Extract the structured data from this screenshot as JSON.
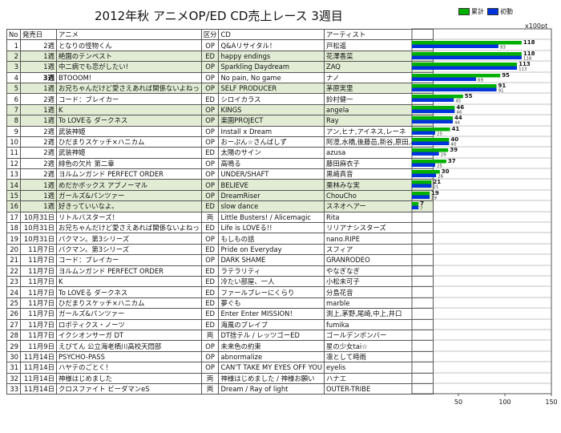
{
  "title": "2012年秋 アニメOP/ED CD売上レース 3週目",
  "legend": {
    "total_label": "累計",
    "week_label": "初動",
    "total_color": "#00b000",
    "week_color": "#0033dd"
  },
  "unit": "x100pt",
  "headers": [
    "No",
    "発売日",
    "アニメ",
    "区分",
    "CD",
    "アーティスト"
  ],
  "rows": [
    {
      "no": "1",
      "date": "2週",
      "anime": "となりの怪物くん",
      "type": "OP",
      "cd": "Q&Aリサイタル！",
      "artist": "戸松遥",
      "hl": false
    },
    {
      "no": "2",
      "date": "1週",
      "anime": "絶園のテンペスト",
      "type": "ED",
      "cd": "happy endings",
      "artist": "花澤香菜",
      "hl": true
    },
    {
      "no": "3",
      "date": "1週",
      "anime": "中二病でも恋がしたい!",
      "type": "OP",
      "cd": "Sparkling Daydream",
      "artist": "ZAQ",
      "hl": true
    },
    {
      "no": "4",
      "date": "3週",
      "anime": "BTOOOM!",
      "type": "OP",
      "cd": "No pain, No game",
      "artist": "ナノ",
      "hl": false
    },
    {
      "no": "5",
      "date": "1週",
      "anime": "お兄ちゃんだけど愛さえあれば関係ないよねっ",
      "type": "OP",
      "cd": "SELF PRODUCER",
      "artist": "茅原実里",
      "hl": true
    },
    {
      "no": "6",
      "date": "2週",
      "anime": "コード：ブレイカー",
      "type": "ED",
      "cd": "シロイカラス",
      "artist": "鈴村健一",
      "hl": false
    },
    {
      "no": "7",
      "date": "1週",
      "anime": "K",
      "type": "OP",
      "cd": "KINGS",
      "artist": "angela",
      "hl": true
    },
    {
      "no": "8",
      "date": "1週",
      "anime": "To LOVEる ダークネス",
      "type": "OP",
      "cd": "楽園PROJECT",
      "artist": "Ray",
      "hl": true
    },
    {
      "no": "9",
      "date": "2週",
      "anime": "武装神姫",
      "type": "OP",
      "cd": "Install x Dream",
      "artist": "アン,ヒナ,アイネス,レーネ",
      "hl": false
    },
    {
      "no": "10",
      "date": "2週",
      "anime": "ひだまりスケッチ×ハニカム",
      "type": "OP",
      "cd": "おーぷん☆さんばしず",
      "artist": "阿澄,水橋,後藤邑,新谷,原田,小見川",
      "hl": false
    },
    {
      "no": "11",
      "date": "2週",
      "anime": "武装神姫",
      "type": "ED",
      "cd": "太陽のサイン",
      "artist": "azusa",
      "hl": false
    },
    {
      "no": "12",
      "date": "2週",
      "anime": "緋色の欠片 第二章",
      "type": "OP",
      "cd": "高鳴る",
      "artist": "藤田麻衣子",
      "hl": false
    },
    {
      "no": "13",
      "date": "2週",
      "anime": "ヨルムンガンド PERFECT ORDER",
      "type": "OP",
      "cd": "UNDER/SHAFT",
      "artist": "黒崎真音",
      "hl": false
    },
    {
      "no": "14",
      "date": "1週",
      "anime": "めだかボックス アブノーマル",
      "type": "OP",
      "cd": "BELIEVE",
      "artist": "栗林みな実",
      "hl": true
    },
    {
      "no": "15",
      "date": "1週",
      "anime": "ガールズ&パンツァー",
      "type": "OP",
      "cd": "DreamRiser",
      "artist": "ChouCho",
      "hl": true
    },
    {
      "no": "16",
      "date": "1週",
      "anime": "好きっていいなよ。",
      "type": "ED",
      "cd": "slow dance",
      "artist": "スネオヘアー",
      "hl": true
    },
    {
      "no": "17",
      "date": "10月31日",
      "anime": "リトルバスターズ！",
      "type": "両",
      "cd": "Little Busters! / Alicemagic",
      "artist": "Rita",
      "hl": false
    },
    {
      "no": "18",
      "date": "10月31日",
      "anime": "お兄ちゃんだけど愛さえあれば関係ないよねっ",
      "type": "ED",
      "cd": "Life is LOVEる!!",
      "artist": "リリアナシスターズ",
      "hl": false
    },
    {
      "no": "19",
      "date": "10月31日",
      "anime": "バクマン。第3シリーズ",
      "type": "OP",
      "cd": "もしもの話",
      "artist": "nano.RIPE",
      "hl": false
    },
    {
      "no": "20",
      "date": "11月7日",
      "anime": "バクマン。第3シリーズ",
      "type": "ED",
      "cd": "Pride on Everyday",
      "artist": "スフィア",
      "hl": false
    },
    {
      "no": "21",
      "date": "11月7日",
      "anime": "コード：ブレイカー",
      "type": "OP",
      "cd": "DARK SHAME",
      "artist": "GRANRODEO",
      "hl": false
    },
    {
      "no": "22",
      "date": "11月7日",
      "anime": "ヨルムンガンド PERFECT ORDER",
      "type": "ED",
      "cd": "ラテラリティ",
      "artist": "やなぎなぎ",
      "hl": false
    },
    {
      "no": "23",
      "date": "11月7日",
      "anime": "K",
      "type": "ED",
      "cd": "冷たい部屋、一人",
      "artist": "小松未可子",
      "hl": false
    },
    {
      "no": "24",
      "date": "11月7日",
      "anime": "To LOVEる ダークネス",
      "type": "ED",
      "cd": "ファールプレーにくらり",
      "artist": "分島花音",
      "hl": false
    },
    {
      "no": "25",
      "date": "11月7日",
      "anime": "ひだまりスケッチ×ハニカム",
      "type": "ED",
      "cd": "夢ぐも",
      "artist": "marble",
      "hl": false
    },
    {
      "no": "26",
      "date": "11月7日",
      "anime": "ガールズ&パンツァー",
      "type": "ED",
      "cd": "Enter Enter MISSION！",
      "artist": "渕上,茅野,尾崎,中上,井口",
      "hl": false
    },
    {
      "no": "27",
      "date": "11月7日",
      "anime": "ロボティクス・ノーツ",
      "type": "ED",
      "cd": "海風のブレイブ",
      "artist": "fumika",
      "hl": false
    },
    {
      "no": "28",
      "date": "11月7日",
      "anime": "イクシオンサーガ DT",
      "type": "両",
      "cd": "DT捨テル / レッツゴーED",
      "artist": "ゴールデンボンバー",
      "hl": false
    },
    {
      "no": "29",
      "date": "11月9日",
      "anime": "えびてん 公立海老栖川高校天悶部",
      "type": "OP",
      "cd": "未来色の約束",
      "artist": "星の少女tai☆",
      "hl": false
    },
    {
      "no": "30",
      "date": "11月14日",
      "anime": "PSYCHO-PASS",
      "type": "OP",
      "cd": "abnormalize",
      "artist": "凛として時雨",
      "hl": false
    },
    {
      "no": "31",
      "date": "11月14日",
      "anime": "ハヤテのごとく！",
      "type": "OP",
      "cd": "CAN'T TAKE MY EYES OFF YOU",
      "artist": "eyelis",
      "hl": false
    },
    {
      "no": "32",
      "date": "11月14日",
      "anime": "神様はじめました",
      "type": "両",
      "cd": "神様はじめました / 神様お願い",
      "artist": "ハナエ",
      "hl": false
    },
    {
      "no": "33",
      "date": "11月14日",
      "anime": "クロスファイト ビーダマンeS",
      "type": "両",
      "cd": "Dream / Ray of light",
      "artist": "OUTER-TRIBE",
      "hl": false
    }
  ],
  "chart_data": {
    "type": "bar",
    "orientation": "horizontal",
    "categories": [
      "1",
      "2",
      "3",
      "4",
      "5",
      "6",
      "7",
      "8",
      "9",
      "10",
      "11",
      "12",
      "13",
      "14",
      "15",
      "16"
    ],
    "series": [
      {
        "name": "累計",
        "values": [
          118,
          118,
          113,
          95,
          91,
          55,
          46,
          44,
          41,
          40,
          39,
          37,
          30,
          21,
          19,
          7
        ]
      },
      {
        "name": "初動",
        "values": [
          93,
          118,
          113,
          69,
          91,
          45,
          46,
          44,
          25,
          40,
          29,
          25,
          26,
          21,
          19,
          7
        ]
      }
    ],
    "xlim": [
      0,
      150
    ],
    "xticks": [
      50,
      100,
      150
    ],
    "unit": "x100pt"
  }
}
